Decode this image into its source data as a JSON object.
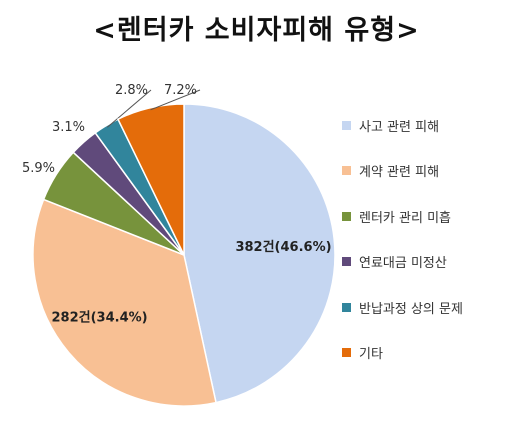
{
  "chart_data": {
    "type": "pie",
    "title": "<렌터카 소비자피해 유형>",
    "slices": [
      {
        "name": "사고 관련 피해",
        "value": 46.6,
        "label": "382건(46.6%)",
        "color": "#c5d6f1"
      },
      {
        "name": "계약 관련 피해",
        "value": 34.4,
        "label": "282건(34.4%)",
        "color": "#f8c094"
      },
      {
        "name": "렌터카 관리 미흡",
        "value": 5.9,
        "label": "5.9%",
        "color": "#77933c"
      },
      {
        "name": "연료대금 미정산",
        "value": 3.1,
        "label": "3.1%",
        "color": "#604a7b"
      },
      {
        "name": "반납과정 상의 문제",
        "value": 2.8,
        "label": "2.8%",
        "color": "#31859c"
      },
      {
        "name": "기타",
        "value": 7.2,
        "label": "7.2%",
        "color": "#e46c0a"
      }
    ],
    "legend_position": "right"
  }
}
